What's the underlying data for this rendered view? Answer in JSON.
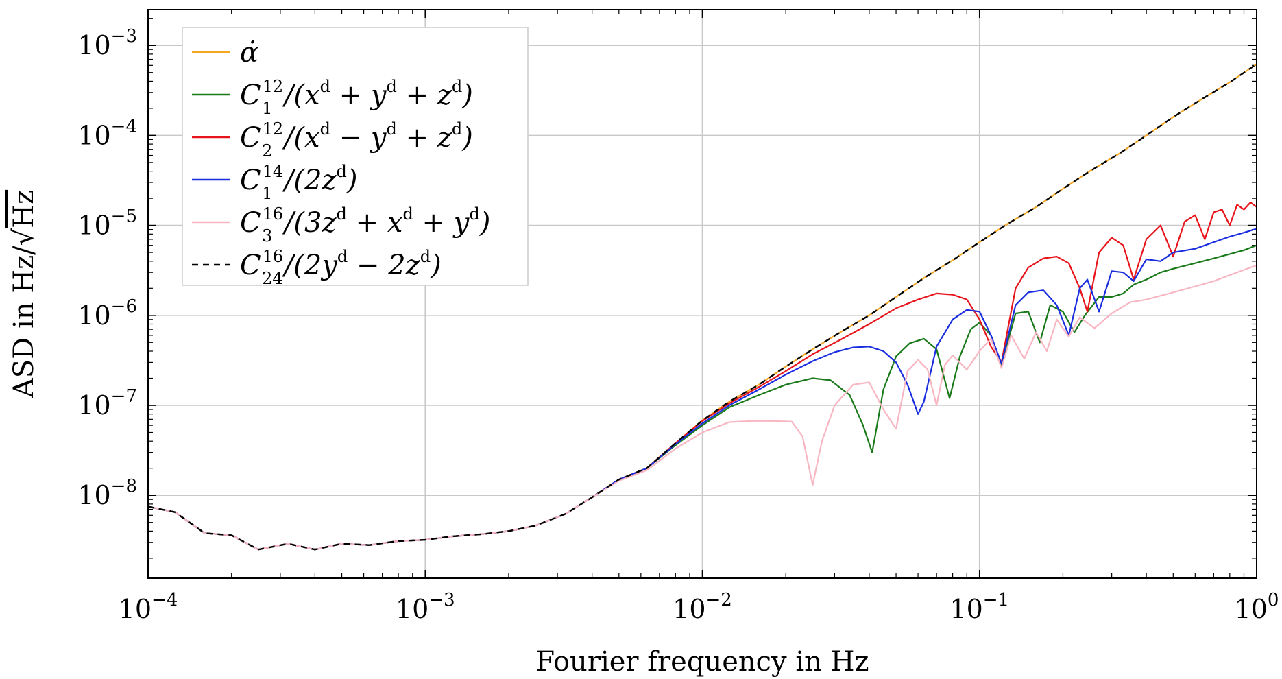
{
  "chart_data": {
    "type": "line",
    "x_scale": "log",
    "y_scale": "log",
    "xlim": [
      0.0001,
      1
    ],
    "ylim": [
      1.2e-09,
      0.0025
    ],
    "xlabel": "Fourier frequency in Hz",
    "ylabel_prefix": "ASD in Hz/",
    "ylabel_sqrt": "Hz",
    "grid": true,
    "legend_position": "top-left",
    "x_ticks": [
      {
        "value": 0.0001,
        "base": "10",
        "exp": "−4"
      },
      {
        "value": 0.001,
        "base": "10",
        "exp": "−3"
      },
      {
        "value": 0.01,
        "base": "10",
        "exp": "−2"
      },
      {
        "value": 0.1,
        "base": "10",
        "exp": "−1"
      },
      {
        "value": 1,
        "base": "10",
        "exp": "0"
      }
    ],
    "y_ticks": [
      {
        "value": 1e-08,
        "base": "10",
        "exp": "−8"
      },
      {
        "value": 1e-07,
        "base": "10",
        "exp": "−7"
      },
      {
        "value": 1e-06,
        "base": "10",
        "exp": "−6"
      },
      {
        "value": 1e-05,
        "base": "10",
        "exp": "−5"
      },
      {
        "value": 0.0001,
        "base": "10",
        "exp": "−4"
      },
      {
        "value": 0.001,
        "base": "10",
        "exp": "−3"
      }
    ],
    "series": [
      {
        "name": "alpha_dot",
        "color": "#f5a623",
        "dash": false,
        "legend": {
          "main": "α̇"
        },
        "x": [
          0.0001,
          0.000125,
          0.00016,
          0.0002,
          0.00025,
          0.00032,
          0.0004,
          0.0005,
          0.00063,
          0.0008,
          0.001,
          0.00125,
          0.0016,
          0.002,
          0.0025,
          0.0032,
          0.004,
          0.005,
          0.0063,
          0.008,
          0.01,
          0.0125,
          0.016,
          0.02,
          0.025,
          0.032,
          0.04,
          0.05,
          0.063,
          0.08,
          0.1,
          0.125,
          0.16,
          0.2,
          0.25,
          0.32,
          0.4,
          0.5,
          0.63,
          0.8,
          1.0
        ],
        "y": [
          7.5e-09,
          6.5e-09,
          3.8e-09,
          3.6e-09,
          2.5e-09,
          2.9e-09,
          2.5e-09,
          2.9e-09,
          2.8e-09,
          3.1e-09,
          3.2e-09,
          3.5e-09,
          3.7e-09,
          4e-09,
          4.6e-09,
          6.2e-09,
          9.5e-09,
          1.5e-08,
          2e-08,
          3.8e-08,
          6.8e-08,
          1.1e-07,
          1.7e-07,
          2.7e-07,
          4.2e-07,
          6.7e-07,
          1e-06,
          1.6e-06,
          2.6e-06,
          4.1e-06,
          6.5e-06,
          1.02e-05,
          1.6e-05,
          2.55e-05,
          4e-05,
          6.3e-05,
          0.0001,
          0.00016,
          0.00025,
          0.00039,
          0.00062
        ]
      },
      {
        "name": "C1_12",
        "color": "#1a7a1a",
        "dash": false,
        "legend": {
          "main": "C",
          "sup": "12",
          "sub": "1",
          "rest": "/(x + y + z)",
          "rest_parts": [
            "/(x",
            "d",
            " + y",
            "d",
            " + z",
            "d",
            ")"
          ]
        },
        "x": [
          0.0001,
          0.000125,
          0.00016,
          0.0002,
          0.00025,
          0.00032,
          0.0004,
          0.0005,
          0.00063,
          0.0008,
          0.001,
          0.00125,
          0.0016,
          0.002,
          0.0025,
          0.0032,
          0.004,
          0.005,
          0.0063,
          0.008,
          0.01,
          0.0125,
          0.016,
          0.02,
          0.025,
          0.029,
          0.034,
          0.038,
          0.041,
          0.045,
          0.05,
          0.056,
          0.063,
          0.07,
          0.078,
          0.085,
          0.093,
          0.1,
          0.11,
          0.12,
          0.135,
          0.15,
          0.165,
          0.18,
          0.2,
          0.22,
          0.24,
          0.27,
          0.3,
          0.33,
          0.36,
          0.4,
          0.45,
          0.5,
          0.6,
          0.7,
          0.8,
          0.9,
          1.0
        ],
        "y": [
          7.5e-09,
          6.5e-09,
          3.8e-09,
          3.6e-09,
          2.5e-09,
          2.9e-09,
          2.5e-09,
          2.9e-09,
          2.8e-09,
          3.1e-09,
          3.2e-09,
          3.5e-09,
          3.7e-09,
          4e-09,
          4.6e-09,
          6.2e-09,
          9.5e-09,
          1.5e-08,
          2e-08,
          3.6e-08,
          6e-08,
          9.5e-08,
          1.3e-07,
          1.7e-07,
          2e-07,
          1.9e-07,
          1.3e-07,
          6e-08,
          3e-08,
          1.5e-07,
          3.5e-07,
          4.9e-07,
          5.5e-07,
          4.2e-07,
          1.2e-07,
          3.5e-07,
          7e-07,
          8.3e-07,
          6e-07,
          2.8e-07,
          1.05e-06,
          1.1e-06,
          5e-07,
          1.3e-06,
          1.1e-06,
          6.5e-07,
          1e-06,
          1.6e-06,
          1.6e-06,
          1.75e-06,
          2.2e-06,
          2.5e-06,
          3e-06,
          3.3e-06,
          3.8e-06,
          4.3e-06,
          4.8e-06,
          5.3e-06,
          6e-06
        ]
      },
      {
        "name": "C2_12",
        "color": "#e8141c",
        "dash": false,
        "legend": {
          "main": "C",
          "sup": "12",
          "sub": "2",
          "rest_parts": [
            "/(x",
            "d",
            " − y",
            "d",
            " + z",
            "d",
            ")"
          ]
        },
        "x": [
          0.0001,
          0.000125,
          0.00016,
          0.0002,
          0.00025,
          0.00032,
          0.0004,
          0.0005,
          0.00063,
          0.0008,
          0.001,
          0.00125,
          0.0016,
          0.002,
          0.0025,
          0.0032,
          0.004,
          0.005,
          0.0063,
          0.008,
          0.01,
          0.0125,
          0.016,
          0.02,
          0.025,
          0.032,
          0.04,
          0.05,
          0.06,
          0.07,
          0.08,
          0.09,
          0.1,
          0.11,
          0.12,
          0.135,
          0.15,
          0.17,
          0.19,
          0.21,
          0.23,
          0.245,
          0.27,
          0.3,
          0.33,
          0.36,
          0.4,
          0.45,
          0.5,
          0.55,
          0.6,
          0.65,
          0.7,
          0.75,
          0.8,
          0.85,
          0.9,
          0.95,
          1.0
        ],
        "y": [
          7.5e-09,
          6.5e-09,
          3.8e-09,
          3.6e-09,
          2.5e-09,
          2.9e-09,
          2.5e-09,
          2.9e-09,
          2.8e-09,
          3.1e-09,
          3.2e-09,
          3.5e-09,
          3.7e-09,
          4e-09,
          4.6e-09,
          6.2e-09,
          9.5e-09,
          1.5e-08,
          2e-08,
          3.8e-08,
          6.7e-08,
          1.05e-07,
          1.6e-07,
          2.4e-07,
          3.7e-07,
          5.5e-07,
          8e-07,
          1.2e-06,
          1.5e-06,
          1.75e-06,
          1.7e-06,
          1.5e-06,
          9e-07,
          4.5e-07,
          3e-07,
          2e-06,
          3.4e-06,
          4.3e-06,
          4.5e-06,
          3.8e-06,
          2e-06,
          1.1e-06,
          5e-06,
          7.3e-06,
          6e-06,
          2.5e-06,
          7e-06,
          1e-05,
          4.5e-06,
          1.1e-05,
          1.3e-05,
          7e-06,
          1.4e-05,
          1.5e-05,
          1e-05,
          1.7e-05,
          1.5e-05,
          1.8e-05,
          1.6e-05
        ]
      },
      {
        "name": "C1_14",
        "color": "#1a2ee0",
        "dash": false,
        "legend": {
          "main": "C",
          "sup": "14",
          "sub": "1",
          "rest_parts": [
            "/(2z",
            "d",
            ")"
          ]
        },
        "x": [
          0.0001,
          0.000125,
          0.00016,
          0.0002,
          0.00025,
          0.00032,
          0.0004,
          0.0005,
          0.00063,
          0.0008,
          0.001,
          0.00125,
          0.0016,
          0.002,
          0.0025,
          0.0032,
          0.004,
          0.005,
          0.0063,
          0.008,
          0.01,
          0.0125,
          0.016,
          0.02,
          0.025,
          0.03,
          0.035,
          0.04,
          0.045,
          0.05,
          0.055,
          0.06,
          0.063,
          0.07,
          0.08,
          0.09,
          0.1,
          0.11,
          0.12,
          0.135,
          0.15,
          0.17,
          0.19,
          0.21,
          0.23,
          0.245,
          0.27,
          0.3,
          0.33,
          0.36,
          0.4,
          0.45,
          0.5,
          0.6,
          0.7,
          0.8,
          0.9,
          1.0
        ],
        "y": [
          7.5e-09,
          6.5e-09,
          3.8e-09,
          3.6e-09,
          2.5e-09,
          2.9e-09,
          2.5e-09,
          2.9e-09,
          2.8e-09,
          3.1e-09,
          3.2e-09,
          3.5e-09,
          3.7e-09,
          4e-09,
          4.6e-09,
          6.2e-09,
          9.5e-09,
          1.5e-08,
          2e-08,
          3.7e-08,
          6.3e-08,
          1e-07,
          1.5e-07,
          2.2e-07,
          3.1e-07,
          3.9e-07,
          4.4e-07,
          4.5e-07,
          4e-07,
          3e-07,
          1.7e-07,
          8e-08,
          1.1e-07,
          4.5e-07,
          9e-07,
          1.15e-06,
          1.1e-06,
          6e-07,
          2.9e-07,
          1.3e-06,
          1.8e-06,
          1.9e-06,
          1.3e-06,
          6e-07,
          2e-06,
          2.5e-06,
          1.1e-06,
          3.1e-06,
          3e-06,
          2.4e-06,
          4.2e-06,
          4e-06,
          5e-06,
          5.5e-06,
          6.5e-06,
          7.5e-06,
          8.3e-06,
          9.2e-06
        ]
      },
      {
        "name": "C3_16",
        "color": "#f7b6c2",
        "dash": false,
        "legend": {
          "main": "C",
          "sup": "16",
          "sub": "3",
          "rest_parts": [
            "/(3z",
            "d",
            " + x",
            "d",
            " + y",
            "d",
            ")"
          ]
        },
        "x": [
          0.0001,
          0.000125,
          0.00016,
          0.0002,
          0.00025,
          0.00032,
          0.0004,
          0.0005,
          0.00063,
          0.0008,
          0.001,
          0.00125,
          0.0016,
          0.002,
          0.0025,
          0.0032,
          0.004,
          0.005,
          0.0063,
          0.008,
          0.01,
          0.0125,
          0.015,
          0.018,
          0.021,
          0.023,
          0.025,
          0.027,
          0.03,
          0.035,
          0.04,
          0.045,
          0.05,
          0.055,
          0.06,
          0.065,
          0.07,
          0.075,
          0.08,
          0.09,
          0.1,
          0.11,
          0.12,
          0.13,
          0.145,
          0.16,
          0.175,
          0.19,
          0.21,
          0.23,
          0.26,
          0.3,
          0.35,
          0.4,
          0.5,
          0.6,
          0.7,
          0.8,
          0.9,
          1.0
        ],
        "y": [
          7.5e-09,
          6.5e-09,
          3.8e-09,
          3.6e-09,
          2.5e-09,
          2.9e-09,
          2.5e-09,
          2.9e-09,
          2.8e-09,
          3.1e-09,
          3.2e-09,
          3.5e-09,
          3.7e-09,
          4e-09,
          4.6e-09,
          6.2e-09,
          9.5e-09,
          1.45e-08,
          1.9e-08,
          3.3e-08,
          5e-08,
          6.5e-08,
          6.7e-08,
          6.7e-08,
          6.6e-08,
          4.5e-08,
          1.3e-08,
          4e-08,
          1e-07,
          1.7e-07,
          1.8e-07,
          9e-08,
          5.5e-08,
          2.4e-07,
          3.2e-07,
          2.5e-07,
          1e-07,
          2.8e-07,
          3.6e-07,
          2.5e-07,
          4e-07,
          5.5e-07,
          2.6e-07,
          6e-07,
          3.3e-07,
          6.5e-07,
          4e-07,
          9e-07,
          5.8e-07,
          9.5e-07,
          7.2e-07,
          1.05e-06,
          1.4e-06,
          1.5e-06,
          1.8e-06,
          2.1e-06,
          2.4e-06,
          2.8e-06,
          3.2e-06,
          3.6e-06
        ]
      },
      {
        "name": "C24_16",
        "color": "#000000",
        "dash": true,
        "legend": {
          "main": "C",
          "sup": "16",
          "sub": "24",
          "rest_parts": [
            "/(2y",
            "d",
            " − 2z",
            "d",
            ")"
          ]
        },
        "x": [
          0.0001,
          0.000125,
          0.00016,
          0.0002,
          0.00025,
          0.00032,
          0.0004,
          0.0005,
          0.00063,
          0.0008,
          0.001,
          0.00125,
          0.0016,
          0.002,
          0.0025,
          0.0032,
          0.004,
          0.005,
          0.0063,
          0.008,
          0.01,
          0.0125,
          0.016,
          0.02,
          0.025,
          0.032,
          0.04,
          0.05,
          0.063,
          0.08,
          0.1,
          0.125,
          0.16,
          0.2,
          0.25,
          0.32,
          0.4,
          0.5,
          0.63,
          0.8,
          1.0
        ],
        "y": [
          7.5e-09,
          6.5e-09,
          3.8e-09,
          3.6e-09,
          2.5e-09,
          2.9e-09,
          2.5e-09,
          2.9e-09,
          2.8e-09,
          3.1e-09,
          3.2e-09,
          3.5e-09,
          3.7e-09,
          4e-09,
          4.6e-09,
          6.2e-09,
          9.5e-09,
          1.5e-08,
          2e-08,
          3.8e-08,
          6.8e-08,
          1.1e-07,
          1.7e-07,
          2.7e-07,
          4.2e-07,
          6.7e-07,
          1e-06,
          1.6e-06,
          2.6e-06,
          4.1e-06,
          6.5e-06,
          1.02e-05,
          1.6e-05,
          2.55e-05,
          4e-05,
          6.3e-05,
          0.0001,
          0.00016,
          0.00025,
          0.00039,
          0.00062
        ]
      }
    ]
  }
}
